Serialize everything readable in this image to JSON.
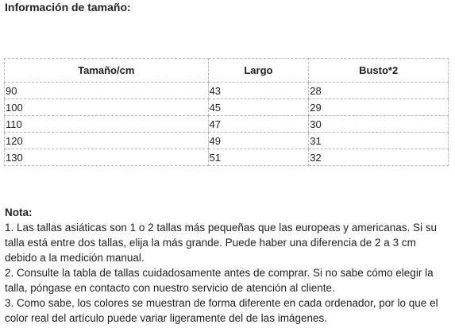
{
  "section_title": "Información de tamaño:",
  "size_table": {
    "headers": [
      "Tamaño/cm",
      "Largo",
      "Busto*2"
    ],
    "rows": [
      [
        "90",
        "43",
        "28"
      ],
      [
        "100",
        "45",
        "29"
      ],
      [
        "110",
        "47",
        "30"
      ],
      [
        "120",
        "49",
        "31"
      ],
      [
        "130",
        "51",
        "32"
      ]
    ]
  },
  "note": {
    "title": "Nota:",
    "items": [
      "1. Las tallas asiáticas son 1 o 2 tallas más pequeñas que las europeas y americanas. Si su talla está entre dos tallas, elija la más grande. Puede haber una diferencia de 2 a 3 cm debido a la medición manual.",
      "2. Consulte la tabla de tallas cuidadosamente antes de comprar. Si no sabe cómo elegir la talla, póngase en contacto con nuestro servicio de atención al cliente.",
      "3. Como sabe, los colores se muestran de forma diferente en cada ordenador, por lo que el color real del artículo puede variar ligeramente del de las imágenes."
    ]
  }
}
